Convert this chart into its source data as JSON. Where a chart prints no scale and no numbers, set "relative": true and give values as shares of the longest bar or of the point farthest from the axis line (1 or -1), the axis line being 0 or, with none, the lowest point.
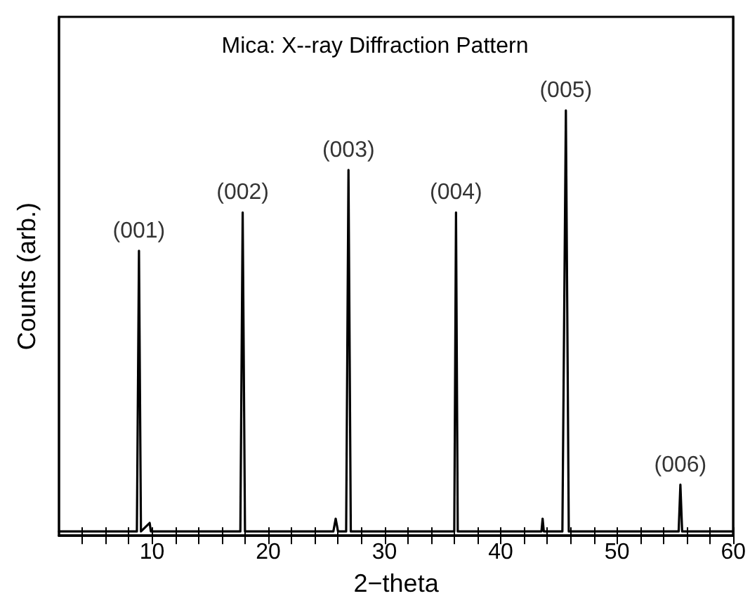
{
  "chart_data": {
    "type": "line",
    "title": "Mica: X--ray Diffraction Pattern",
    "xlabel": "2−theta",
    "ylabel": "Counts (arb.)",
    "relative": true,
    "color": "#000000",
    "x": [
      2,
      8.7,
      8.88,
      9.05,
      9.8,
      9.9,
      17.6,
      17.8,
      18.0,
      25.6,
      25.8,
      26.0,
      26.7,
      26.9,
      27.1,
      36.0,
      36.15,
      36.3,
      43.5,
      43.6,
      43.7,
      45.3,
      45.6,
      45.85,
      55.3,
      55.45,
      55.6,
      60
    ],
    "values": [
      0.01,
      0.01,
      0.67,
      0.01,
      0.03,
      0.01,
      0.01,
      0.76,
      0.01,
      0.01,
      0.04,
      0.01,
      0.01,
      0.86,
      0.01,
      0.01,
      0.76,
      0.01,
      0.01,
      0.04,
      0.01,
      0.01,
      1,
      0.01,
      0.01,
      0.12,
      0.01,
      0.01
    ],
    "xlim": [
      2,
      60
    ],
    "xticks": [
      {
        "value": 4,
        "label": null
      },
      {
        "value": 6,
        "label": null
      },
      {
        "value": 8,
        "label": null
      },
      10,
      {
        "value": 12,
        "label": null
      },
      {
        "value": 14,
        "label": null
      },
      {
        "value": 16,
        "label": null
      },
      {
        "value": 18,
        "label": null
      },
      20,
      {
        "value": 22,
        "label": null
      },
      {
        "value": 24,
        "label": null
      },
      {
        "value": 26,
        "label": null
      },
      {
        "value": 28,
        "label": null
      },
      30,
      {
        "value": 32,
        "label": null
      },
      {
        "value": 34,
        "label": null
      },
      {
        "value": 36,
        "label": null
      },
      {
        "value": 38,
        "label": null
      },
      40,
      {
        "value": 42,
        "label": null
      },
      {
        "value": 44,
        "label": null
      },
      {
        "value": 46,
        "label": null
      },
      {
        "value": 48,
        "label": null
      },
      50,
      {
        "value": 52,
        "label": null
      },
      {
        "value": 54,
        "label": null
      },
      {
        "value": 56,
        "label": null
      },
      {
        "value": 58,
        "label": null
      },
      60
    ],
    "annotations": [
      {
        "text": "(001)",
        "x": 8.88,
        "y": 0.67
      },
      {
        "text": "(002)",
        "x": 17.8,
        "y": 0.76
      },
      {
        "text": "(003)",
        "x": 26.9,
        "y": 0.86
      },
      {
        "text": "(004)",
        "x": 36.15,
        "y": 0.76
      },
      {
        "text": "(005)",
        "x": 45.6,
        "y": 1
      },
      {
        "text": "(006)",
        "x": 55.45,
        "y": 0.12
      }
    ],
    "grid": false,
    "marker": "none",
    "line_style": "solid"
  }
}
